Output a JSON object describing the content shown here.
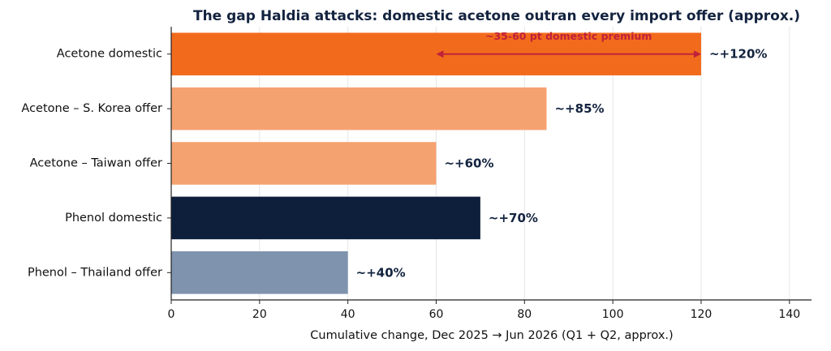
{
  "chart_data": {
    "type": "bar",
    "orientation": "horizontal",
    "title": "The gap Haldia attacks: domestic acetone outran every import offer (approx.)",
    "xlabel": "Cumulative change, Dec 2025 → Jun 2026 (Q1 + Q2, approx.)",
    "ylabel": "",
    "xlim": [
      0,
      145
    ],
    "xticks": [
      0,
      20,
      40,
      60,
      80,
      100,
      120,
      140
    ],
    "grid": "vertical",
    "categories": [
      "Acetone domestic",
      "Acetone – S. Korea offer",
      "Acetone – Taiwan offer",
      "Phenol domestic",
      "Phenol – Thailand offer"
    ],
    "values": [
      120,
      85,
      60,
      70,
      40
    ],
    "value_labels": [
      "~+120%",
      "~+85%",
      "~+60%",
      "~+70%",
      "~+40%"
    ],
    "bar_colors": [
      "#f26b1d",
      "#f5a271",
      "#f5a271",
      "#0d1f3b",
      "#7f93ae"
    ],
    "annotation": {
      "text": "~35-60 pt domestic premium",
      "from": 60,
      "to": 120,
      "color": "#c0203a"
    }
  }
}
